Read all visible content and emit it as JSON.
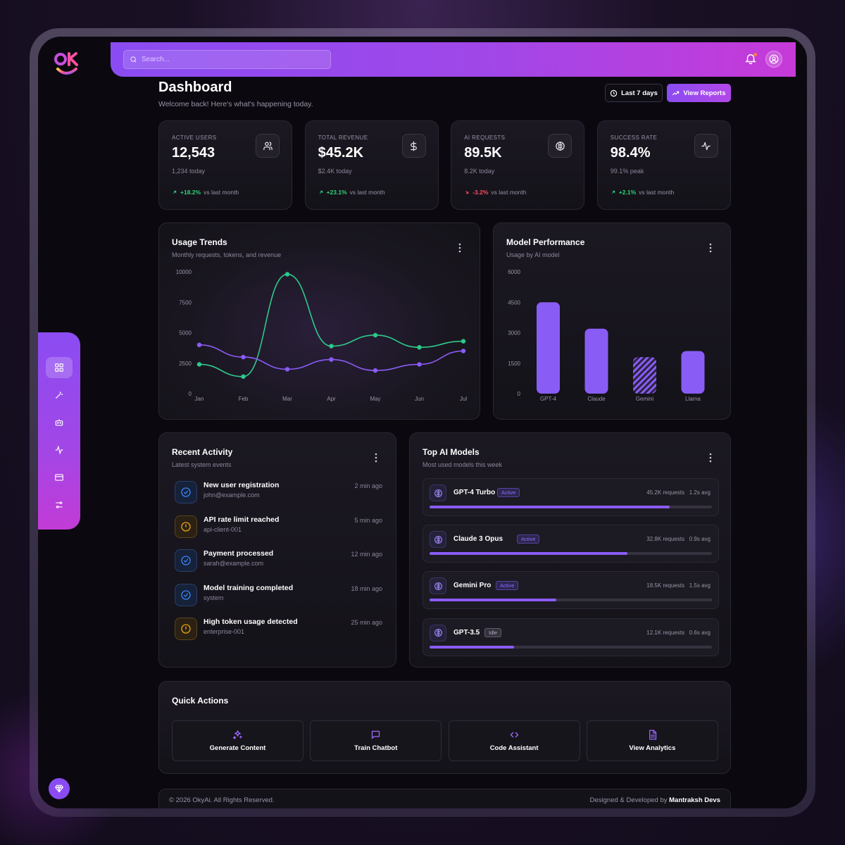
{
  "app": {
    "logo_text": "OK"
  },
  "search": {
    "placeholder": "Search..."
  },
  "header": {
    "title": "Dashboard",
    "subtitle": "Welcome back! Here's what's happening today.",
    "range_label": "Last 7 days",
    "report_label": "View Reports"
  },
  "stats": [
    {
      "label": "ACTIVE USERS",
      "value": "12,543",
      "sub": "1,234 today",
      "trend": "+18.2%",
      "trend_dir": "up",
      "trend_suffix": "vs last month",
      "icon": "users-icon"
    },
    {
      "label": "TOTAL REVENUE",
      "value": "$45.2K",
      "sub": "$2.4K today",
      "trend": "+23.1%",
      "trend_dir": "up",
      "trend_suffix": "vs last month",
      "icon": "dollar-icon"
    },
    {
      "label": "AI REQUESTS",
      "value": "89.5K",
      "sub": "8.2K today",
      "trend": "-3.2%",
      "trend_dir": "down",
      "trend_suffix": "vs last month",
      "icon": "brain-icon"
    },
    {
      "label": "SUCCESS RATE",
      "value": "98.4%",
      "sub": "99.1% peak",
      "trend": "+2.1%",
      "trend_dir": "up",
      "trend_suffix": "vs last month",
      "icon": "pulse-icon"
    }
  ],
  "usage_trends": {
    "title": "Usage Trends",
    "subtitle": "Monthly requests, tokens, and revenue"
  },
  "model_performance": {
    "title": "Model Performance",
    "subtitle": "Usage by AI model"
  },
  "chart_data": [
    {
      "type": "line",
      "title": "Usage Trends",
      "subtitle": "Monthly requests, tokens, and revenue",
      "categories": [
        "Jan",
        "Feb",
        "Mar",
        "Apr",
        "May",
        "Jun",
        "Jul"
      ],
      "yticks": [
        0,
        2500,
        5000,
        7500,
        10000
      ],
      "ylim": [
        0,
        10000
      ],
      "series": [
        {
          "color": "#2ec98a",
          "values": [
            2400,
            1400,
            9800,
            3900,
            4800,
            3800,
            4300
          ]
        },
        {
          "color": "#8a5cf6",
          "values": [
            4000,
            3000,
            2000,
            2800,
            1900,
            2400,
            3500
          ]
        }
      ],
      "grid": false
    },
    {
      "type": "bar",
      "title": "Model Performance",
      "subtitle": "Usage by AI model",
      "categories": [
        "GPT-4",
        "Claude",
        "Gemini",
        "Llama"
      ],
      "values": [
        4500,
        3200,
        1800,
        2100
      ],
      "yticks": [
        0,
        1500,
        3000,
        4500,
        6000
      ],
      "ylim": [
        0,
        6000
      ],
      "bar_color": "#8a5cf6",
      "hatched_category": "Gemini",
      "grid": false
    }
  ],
  "activity": {
    "title": "Recent Activity",
    "subtitle": "Latest system events",
    "items": [
      {
        "title": "New user registration",
        "detail": "john@example.com",
        "time": "2 min ago",
        "kind": "ok"
      },
      {
        "title": "API rate limit reached",
        "detail": "api-client-001",
        "time": "5 min ago",
        "kind": "warn"
      },
      {
        "title": "Payment processed",
        "detail": "sarah@example.com",
        "time": "12 min ago",
        "kind": "ok"
      },
      {
        "title": "Model training completed",
        "detail": "system",
        "time": "18 min ago",
        "kind": "ok"
      },
      {
        "title": "High token usage detected",
        "detail": "enterprise-001",
        "time": "25 min ago",
        "kind": "warn"
      }
    ]
  },
  "top_models": {
    "title": "Top AI Models",
    "subtitle": "Most used models this week",
    "items": [
      {
        "name": "GPT-4 Turbo",
        "status": "Active",
        "requests": "45.2K requests",
        "avg": "1.2s avg",
        "usage": 0.85
      },
      {
        "name": "Claude 3 Opus",
        "status": "Active",
        "requests": "32.8K requests",
        "avg": "0.9s avg",
        "usage": 0.7
      },
      {
        "name": "Gemini Pro",
        "status": "Active",
        "requests": "18.5K requests",
        "avg": "1.5s avg",
        "usage": 0.45
      },
      {
        "name": "GPT-3.5",
        "status": "Idle",
        "requests": "12.1K requests",
        "avg": "0.6s avg",
        "usage": 0.3
      }
    ]
  },
  "quick_actions": {
    "title": "Quick Actions",
    "items": [
      {
        "label": "Generate Content",
        "icon": "sparkles-icon"
      },
      {
        "label": "Train Chatbot",
        "icon": "chat-icon"
      },
      {
        "label": "Code Assistant",
        "icon": "code-icon"
      },
      {
        "label": "View Analytics",
        "icon": "document-icon"
      }
    ]
  },
  "footer": {
    "copyright": "© 2026 OkyAi. All Rights Reserved.",
    "credit_prefix": "Designed & Developed by",
    "credit_name": "Mantraksh Devs"
  },
  "colors": {
    "accent": "#8a5cf6",
    "accent_pink": "#c63ad8",
    "success": "#2ed47a",
    "danger": "#ff4d5e",
    "warning": "#e8a317",
    "info": "#3b82f6"
  }
}
